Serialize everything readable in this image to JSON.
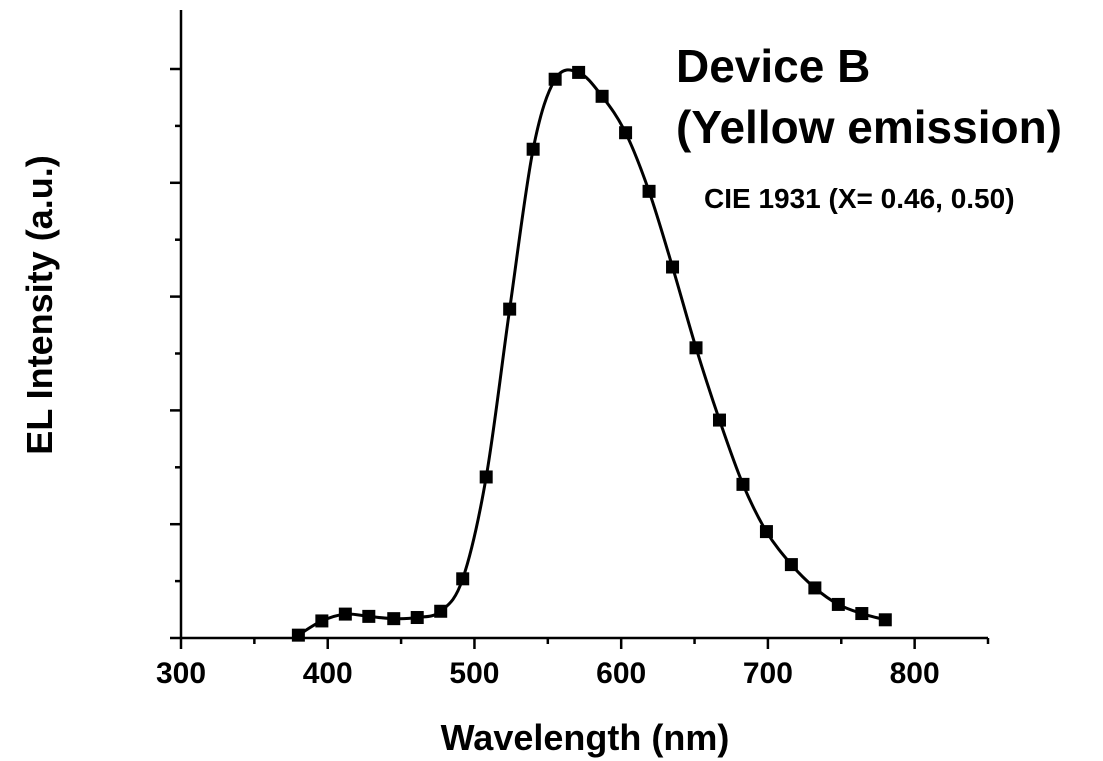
{
  "chart_data": {
    "type": "line",
    "title": "",
    "xlabel": "Wavelength (nm)",
    "ylabel": "EL Intensity (a.u.)",
    "xlim": [
      300,
      850
    ],
    "ylim": [
      0,
      1.0
    ],
    "x_ticks": [
      300,
      400,
      500,
      600,
      700,
      800
    ],
    "x_tick_labels": [
      "300",
      "400",
      "500",
      "600",
      "700",
      "800"
    ],
    "y_tick_labels_shown": false,
    "grid": false,
    "annotations": [
      "Device B",
      "(Yellow emission)",
      "CIE 1931 (X= 0.46, 0.50)"
    ],
    "series": [
      {
        "marker": "square",
        "color": "#000000",
        "x": [
          380,
          396,
          412,
          428,
          445,
          461,
          477,
          492,
          508,
          524,
          540,
          555,
          571,
          587,
          603,
          619,
          635,
          651,
          667,
          683,
          699,
          716,
          732,
          748,
          764,
          780
        ],
        "y": [
          0.005,
          0.03,
          0.042,
          0.038,
          0.034,
          0.036,
          0.047,
          0.104,
          0.283,
          0.578,
          0.859,
          0.982,
          0.994,
          0.952,
          0.888,
          0.785,
          0.652,
          0.51,
          0.383,
          0.27,
          0.187,
          0.129,
          0.088,
          0.059,
          0.043,
          0.032
        ]
      }
    ]
  }
}
